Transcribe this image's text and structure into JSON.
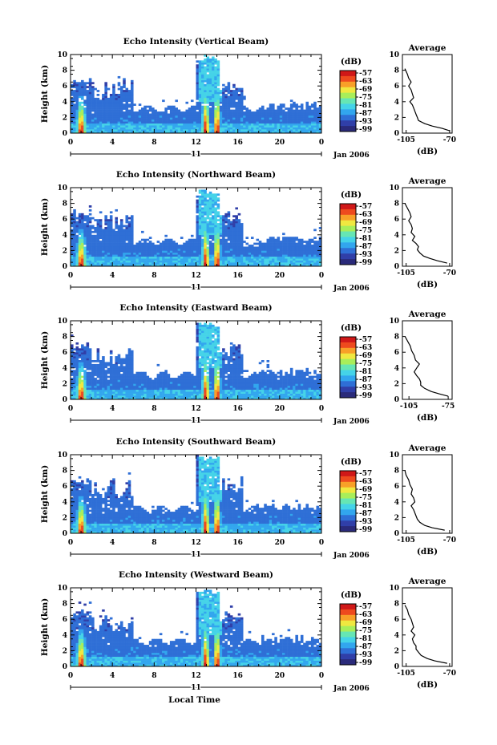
{
  "chart_data": [
    {
      "type": "heatmap",
      "title": "Echo Intensity (Vertical Beam)",
      "ylabel": "Height (km)",
      "xlabel": "",
      "x_ticks": [
        "0",
        "4",
        "8",
        "12",
        "16",
        "20",
        "0"
      ],
      "y_ticks": [
        "0",
        "2",
        "4",
        "6",
        "8",
        "10"
      ],
      "xlim": [
        0,
        24
      ],
      "ylim": [
        0,
        10
      ],
      "date_day": "11",
      "date_month": "Jan 2006",
      "colorbar": {
        "unit": "(dB)",
        "ticks": [
          "-57",
          "-63",
          "-69",
          "-75",
          "-81",
          "-87",
          "-93",
          "-99"
        ]
      },
      "profile": {
        "title": "Average",
        "xlabel": "(dB)",
        "x_ticks": [
          "-105",
          "-70"
        ],
        "y_ticks": [
          "0",
          "2",
          "4",
          "6",
          "8",
          "10"
        ],
        "xlim": [
          -108,
          -68
        ],
        "ylim": [
          0,
          10
        ],
        "heights": [
          8.2,
          7.5,
          7.0,
          6.5,
          6.0,
          5.5,
          5.0,
          4.5,
          4.0,
          3.6,
          3.2,
          2.8,
          2.4,
          2.0,
          1.6,
          1.2,
          0.9,
          0.6,
          0.3
        ],
        "values": [
          -106,
          -104,
          -103,
          -101,
          -103,
          -101,
          -100,
          -99,
          -102,
          -100,
          -99,
          -98,
          -97,
          -96,
          -95,
          -90,
          -84,
          -76,
          -70
        ]
      }
    },
    {
      "type": "heatmap",
      "title": "Echo Intensity (Northward Beam)",
      "ylabel": "Height (km)",
      "xlabel": "",
      "x_ticks": [
        "0",
        "4",
        "8",
        "12",
        "16",
        "20",
        "0"
      ],
      "y_ticks": [
        "0",
        "2",
        "4",
        "6",
        "8",
        "10"
      ],
      "xlim": [
        0,
        24
      ],
      "ylim": [
        0,
        10
      ],
      "date_day": "11",
      "date_month": "Jan 2006",
      "colorbar": {
        "unit": "(dB)",
        "ticks": [
          "-57",
          "-63",
          "-69",
          "-75",
          "-81",
          "-87",
          "-93",
          "-99"
        ]
      },
      "profile": {
        "title": "Average",
        "xlabel": "(dB)",
        "x_ticks": [
          "-105",
          "-70"
        ],
        "y_ticks": [
          "0",
          "2",
          "4",
          "6",
          "8",
          "10"
        ],
        "xlim": [
          -108,
          -68
        ],
        "ylim": [
          0,
          10
        ],
        "heights": [
          8.0,
          7.4,
          6.8,
          6.3,
          5.8,
          5.3,
          4.8,
          4.3,
          3.8,
          3.3,
          2.9,
          2.5,
          2.1,
          1.7,
          1.3,
          1.0,
          0.7,
          0.4
        ],
        "values": [
          -106,
          -104,
          -102,
          -101,
          -103,
          -101,
          -100,
          -101,
          -98,
          -100,
          -97,
          -95,
          -96,
          -94,
          -91,
          -86,
          -80,
          -72
        ]
      }
    },
    {
      "type": "heatmap",
      "title": "Echo Intensity (Eastward Beam)",
      "ylabel": "Height (km)",
      "xlabel": "",
      "x_ticks": [
        "0",
        "4",
        "8",
        "12",
        "16",
        "20",
        "0"
      ],
      "y_ticks": [
        "0",
        "2",
        "4",
        "6",
        "8",
        "10"
      ],
      "xlim": [
        0,
        24
      ],
      "ylim": [
        0,
        10
      ],
      "date_day": "11",
      "date_month": "Jan 2006",
      "colorbar": {
        "unit": "(dB)",
        "ticks": [
          "-57",
          "-63",
          "-69",
          "-75",
          "-81",
          "-87",
          "-93",
          "-99"
        ]
      },
      "profile": {
        "title": "Average",
        "xlabel": "(dB)",
        "x_ticks": [
          "-105",
          "-75"
        ],
        "y_ticks": [
          "0",
          "2",
          "4",
          "6",
          "8",
          "10"
        ],
        "xlim": [
          -110,
          -72
        ],
        "ylim": [
          0,
          10
        ],
        "heights": [
          8.0,
          7.4,
          6.8,
          6.2,
          5.6,
          5.0,
          4.5,
          4.0,
          3.5,
          3.0,
          2.6,
          2.2,
          1.8,
          1.4,
          1.0,
          0.7,
          0.4
        ],
        "values": [
          -108,
          -106,
          -104,
          -103,
          -101,
          -100,
          -97,
          -99,
          -101,
          -99,
          -97,
          -96,
          -96,
          -93,
          -88,
          -82,
          -75
        ]
      }
    },
    {
      "type": "heatmap",
      "title": "Echo Intensity (Southward Beam)",
      "ylabel": "Height (km)",
      "xlabel": "",
      "x_ticks": [
        "0",
        "4",
        "8",
        "12",
        "16",
        "20",
        "0"
      ],
      "y_ticks": [
        "0",
        "2",
        "4",
        "6",
        "8",
        "10"
      ],
      "xlim": [
        0,
        24
      ],
      "ylim": [
        0,
        10
      ],
      "date_day": "11",
      "date_month": "Jan 2006",
      "colorbar": {
        "unit": "(dB)",
        "ticks": [
          "-57",
          "-63",
          "-69",
          "-75",
          "-81",
          "-87",
          "-93",
          "-99"
        ]
      },
      "profile": {
        "title": "Average",
        "xlabel": "(dB)",
        "x_ticks": [
          "-105",
          "-70"
        ],
        "y_ticks": [
          "0",
          "2",
          "4",
          "6",
          "8",
          "10"
        ],
        "xlim": [
          -108,
          -68
        ],
        "ylim": [
          0,
          10
        ],
        "heights": [
          8.0,
          7.4,
          6.8,
          6.2,
          5.6,
          5.0,
          4.5,
          4.0,
          3.5,
          3.0,
          2.6,
          2.2,
          1.8,
          1.4,
          1.0,
          0.7,
          0.4
        ],
        "values": [
          -106,
          -105,
          -103,
          -102,
          -100,
          -101,
          -99,
          -98,
          -101,
          -99,
          -98,
          -97,
          -96,
          -94,
          -90,
          -84,
          -74
        ]
      }
    },
    {
      "type": "heatmap",
      "title": "Echo Intensity (Westward Beam)",
      "ylabel": "Height (km)",
      "xlabel": "Local Time",
      "x_ticks": [
        "0",
        "4",
        "8",
        "12",
        "16",
        "20",
        "0"
      ],
      "y_ticks": [
        "0",
        "2",
        "4",
        "6",
        "8",
        "10"
      ],
      "xlim": [
        0,
        24
      ],
      "ylim": [
        0,
        10
      ],
      "date_day": "11",
      "date_month": "Jan 2006",
      "colorbar": {
        "unit": "(dB)",
        "ticks": [
          "-57",
          "-63",
          "-69",
          "-75",
          "-81",
          "-87",
          "-93",
          "-99"
        ]
      },
      "profile": {
        "title": "Average",
        "xlabel": "(dB)",
        "x_ticks": [
          "-105",
          "-70"
        ],
        "y_ticks": [
          "0",
          "2",
          "4",
          "6",
          "8",
          "10"
        ],
        "xlim": [
          -108,
          -68
        ],
        "ylim": [
          0,
          10
        ],
        "heights": [
          7.8,
          7.2,
          6.6,
          6.0,
          5.5,
          5.0,
          4.5,
          4.0,
          3.5,
          3.0,
          2.6,
          2.2,
          1.8,
          1.4,
          1.0,
          0.7,
          0.4
        ],
        "values": [
          -106,
          -104,
          -103,
          -101,
          -100,
          -99,
          -101,
          -98,
          -100,
          -99,
          -97,
          -97,
          -95,
          -93,
          -88,
          -82,
          -72
        ]
      }
    }
  ],
  "colors": {
    "scale": [
      "#2a2a7a",
      "#303fa8",
      "#2f6fd6",
      "#32a6ee",
      "#45d3e8",
      "#66e6b4",
      "#a8ee5a",
      "#f0e840",
      "#f8a028",
      "#ee4a1e",
      "#d01818"
    ]
  }
}
